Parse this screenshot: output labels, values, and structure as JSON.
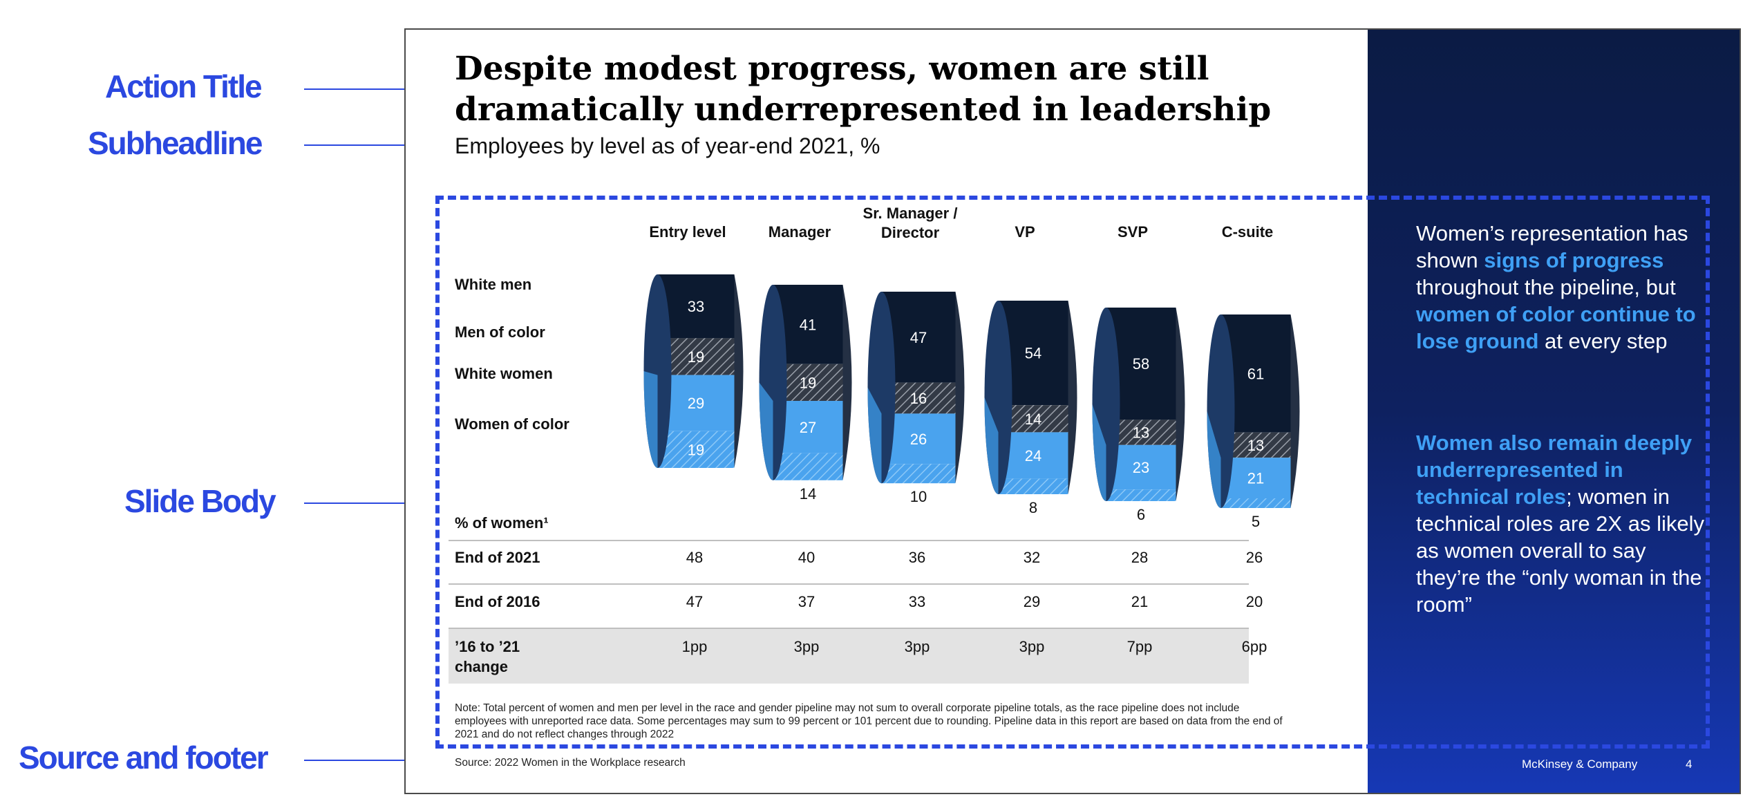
{
  "callouts": {
    "action_title": "Action Title",
    "subheadline": "Subheadline",
    "slide_body": "Slide Body",
    "source_footer": "Source and footer"
  },
  "slide": {
    "title": "Despite modest progress, women are still dramatically underrepresented in leadership",
    "subheadline": "Employees by level as of year-end 2021, %",
    "note": "Note: Total percent of women and men per level in the race and gender pipeline may not sum to overall corporate pipeline totals, as the race pipeline does not include employees with unreported race data. Some percentages may sum to 99 percent or 101 percent due to rounding. Pipeline data in this report are based on data from the end of 2021 and do not reflect changes through 2022",
    "source": "Source: 2022 Women in the Workplace research",
    "footer_brand": "McKinsey & Company",
    "footer_page": "4"
  },
  "panel": {
    "p1_a": "Women’s representation has shown ",
    "p1_b": "signs of progress",
    "p1_c": " throughout the pipeline, but ",
    "p1_d": "women of color continue to lose ground",
    "p1_e": " at every step",
    "p2_a": "Women also remain deeply underrepresented in technical roles",
    "p2_b": "; women in technical roles are 2X as likely as women overall to say they’re the “only woman in the room”"
  },
  "colors": {
    "accent": "#2b48e0",
    "white_men": "#0c1a30",
    "men_of_color": "#4a525f",
    "white_women": "#4aa3ee",
    "women_of_color": "#4aa3ee",
    "panel_highlight": "#3fa0f5"
  },
  "chart_data": {
    "type": "bar",
    "stacked": true,
    "categories": [
      "Entry level",
      "Manager",
      "Sr. Manager /\nDirector",
      "VP",
      "SVP",
      "C-suite"
    ],
    "series": [
      {
        "name": "White men",
        "values": [
          33,
          41,
          47,
          54,
          58,
          61
        ]
      },
      {
        "name": "Men of color",
        "values": [
          19,
          19,
          16,
          14,
          13,
          13
        ]
      },
      {
        "name": "White women",
        "values": [
          29,
          27,
          26,
          24,
          23,
          21
        ]
      },
      {
        "name": "Women of color",
        "values": [
          19,
          14,
          10,
          8,
          6,
          5
        ]
      }
    ],
    "table": {
      "header": "% of women¹",
      "rows": [
        {
          "label": "End of 2021",
          "values": [
            "48",
            "40",
            "36",
            "32",
            "28",
            "26"
          ]
        },
        {
          "label": "End of 2016",
          "values": [
            "47",
            "37",
            "33",
            "29",
            "21",
            "20"
          ]
        },
        {
          "label": "’16 to ’21\nchange",
          "values": [
            "1pp",
            "3pp",
            "3pp",
            "3pp",
            "7pp",
            "6pp"
          ]
        }
      ]
    }
  }
}
